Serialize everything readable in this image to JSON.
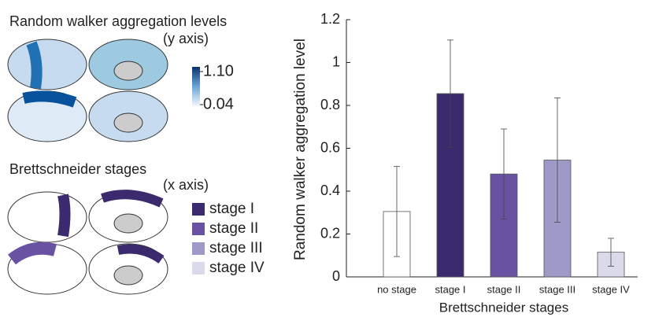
{
  "left_panel": {
    "title1": "Random walker aggregation levels",
    "note1": "(y axis)",
    "colorbar_ticks": [
      {
        "value": 1.1,
        "label": "1.10"
      },
      {
        "value": 0.04,
        "label": "0.04"
      }
    ],
    "title2": "Brettschneider stages",
    "note2": "(x axis)"
  },
  "chart_data": {
    "type": "bar",
    "ylabel": "Random walker aggregation level",
    "xlabel": "Brettschneider stages",
    "categories": [
      "no stage",
      "stage I",
      "stage II",
      "stage III",
      "stage IV"
    ],
    "values": [
      0.305,
      0.855,
      0.48,
      0.545,
      0.115
    ],
    "errors": [
      0.21,
      0.25,
      0.21,
      0.29,
      0.065
    ],
    "colors": [
      "#ffffff",
      "#3b2a6e",
      "#6a52a3",
      "#9e9ac8",
      "#dadaeb"
    ],
    "ylim": [
      0,
      1.2
    ],
    "yticks": [
      0,
      0.2,
      0.4,
      0.6,
      0.8,
      1,
      1.2
    ]
  }
}
